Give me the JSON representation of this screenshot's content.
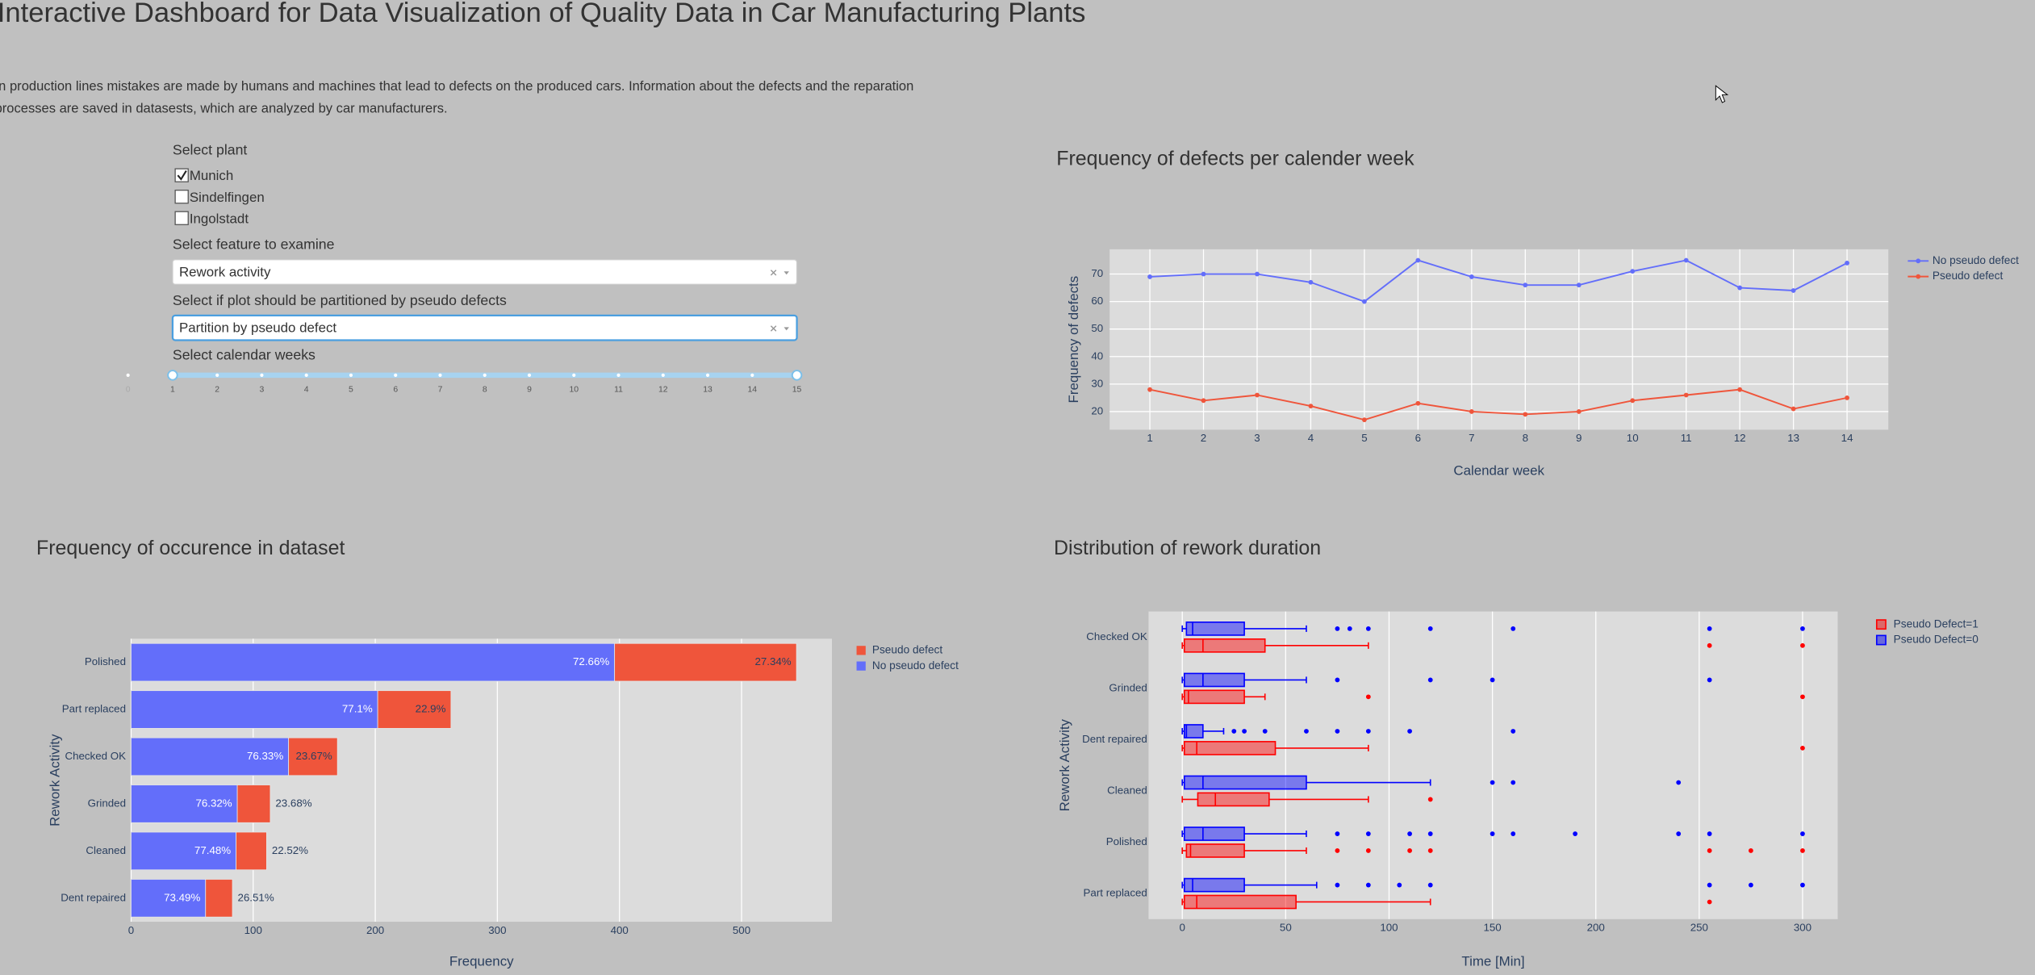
{
  "header": {
    "title": "Interactive Dashboard for Data Visualization of Quality Data in Car Manufacturing Plants",
    "description": [
      "In production lines mistakes are made by humans and machines that lead to defects on the produced cars. Information about the defects and the reparation",
      "processes are saved in datasests, which are analyzed by car manufacturers."
    ]
  },
  "controls": {
    "plant": {
      "label": "Select plant",
      "options": [
        {
          "label": "Munich",
          "checked": true
        },
        {
          "label": "Sindelfingen",
          "checked": false
        },
        {
          "label": "Ingolstadt",
          "checked": false
        }
      ]
    },
    "feature": {
      "label": "Select feature to examine",
      "value": "Rework activity"
    },
    "partition": {
      "label": "Select if plot should be partitioned by pseudo defects",
      "value": "Partition by pseudo defect"
    },
    "weeks": {
      "label": "Select calendar weeks",
      "marks": [
        0,
        1,
        2,
        3,
        4,
        5,
        6,
        7,
        8,
        9,
        10,
        11,
        12,
        13,
        14,
        15
      ],
      "value": [
        1,
        15
      ]
    }
  },
  "chart_data": [
    {
      "type": "line",
      "title": "Frequency of defects per calender week",
      "x_label": "Calendar week",
      "y_label": "Frequency of defects",
      "x": [
        1,
        2,
        3,
        4,
        5,
        6,
        7,
        8,
        9,
        10,
        11,
        12,
        13,
        14
      ],
      "series": [
        {
          "name": "No pseudo defect",
          "color": "#636efa",
          "values": [
            69,
            70,
            70,
            67,
            60,
            75,
            69,
            66,
            66,
            71,
            75,
            65,
            64,
            74
          ]
        },
        {
          "name": "Pseudo defect",
          "color": "#ef553b",
          "values": [
            28,
            24,
            26,
            22,
            17,
            23,
            20,
            19,
            20,
            24,
            26,
            28,
            21,
            25
          ]
        }
      ],
      "xlim": [
        0.25,
        14.77
      ],
      "xticks": [
        1,
        2,
        3,
        4,
        5,
        6,
        7,
        8,
        9,
        10,
        11,
        12,
        13,
        14
      ],
      "ylim": [
        13.4,
        79
      ],
      "yticks": [
        20,
        30,
        40,
        50,
        60,
        70
      ],
      "grid": true,
      "legend": "outside-right"
    },
    {
      "type": "bar",
      "orientation": "h",
      "barmode": "stack",
      "title": "Frequency of occurence in dataset",
      "x_label": "Frequency",
      "y_label": "Rework Activity",
      "categories": [
        "Polished",
        "Part replaced",
        "Checked OK",
        "Grinded",
        "Cleaned",
        "Dent repaired"
      ],
      "series": [
        {
          "name": "No pseudo defect",
          "color": "#636efa",
          "values": [
            396,
            202,
            129,
            87,
            86,
            61
          ],
          "text": [
            "72.66%",
            "77.1%",
            "76.33%",
            "76.32%",
            "77.48%",
            "73.49%"
          ]
        },
        {
          "name": "Pseudo defect",
          "color": "#ef553b",
          "values": [
            149,
            60,
            40,
            27,
            25,
            22
          ],
          "text": [
            "27.34%",
            "22.9%",
            "23.67%",
            "23.68%",
            "22.52%",
            "26.51%"
          ]
        }
      ],
      "xlim": [
        0,
        574
      ],
      "xticks": [
        0,
        100,
        200,
        300,
        400,
        500
      ],
      "grid": true,
      "legend": "outside-right"
    },
    {
      "type": "box",
      "orientation": "h",
      "title": "Distribution of rework duration",
      "x_label": "Time [Min]",
      "y_label": "Rework Activity",
      "categories": [
        "Checked OK",
        "Grinded",
        "Dent repaired",
        "Cleaned",
        "Polished",
        "Part replaced"
      ],
      "series": [
        {
          "name": "Pseudo Defect=1",
          "color": "#ff0000",
          "boxes": [
            {
              "min": 0,
              "q1": 1,
              "median": 10,
              "q3": 40,
              "max": 90,
              "outliers": [
                255,
                300
              ]
            },
            {
              "min": 0,
              "q1": 1,
              "median": 3,
              "q3": 30,
              "max": 40,
              "outliers": [
                90,
                300
              ]
            },
            {
              "min": 0,
              "q1": 1,
              "median": 7,
              "q3": 45,
              "max": 90,
              "outliers": [
                300
              ]
            },
            {
              "min": 0,
              "q1": 7.5,
              "median": 16,
              "q3": 42,
              "max": 90,
              "outliers": [
                120
              ]
            },
            {
              "min": 0,
              "q1": 2,
              "median": 4,
              "q3": 30,
              "max": 60,
              "outliers": [
                75,
                90,
                110,
                120,
                255,
                275,
                300
              ]
            },
            {
              "min": 0,
              "q1": 1,
              "median": 7,
              "q3": 55,
              "max": 120,
              "outliers": [
                255
              ]
            }
          ]
        },
        {
          "name": "Pseudo Defect=0",
          "color": "#0000ff",
          "boxes": [
            {
              "min": 0,
              "q1": 2,
              "median": 5,
              "q3": 30,
              "max": 60,
              "outliers": [
                75,
                81,
                90,
                120,
                160,
                255,
                300
              ]
            },
            {
              "min": 0,
              "q1": 1,
              "median": 10,
              "q3": 30,
              "max": 60,
              "outliers": [
                75,
                120,
                150,
                255
              ]
            },
            {
              "min": 0,
              "q1": 1,
              "median": 2,
              "q3": 10,
              "max": 20,
              "outliers": [
                25,
                30,
                40,
                60,
                75,
                90,
                110,
                160
              ]
            },
            {
              "min": 0,
              "q1": 1,
              "median": 10,
              "q3": 60,
              "max": 120,
              "outliers": [
                150,
                160,
                240
              ]
            },
            {
              "min": 0,
              "q1": 1,
              "median": 10,
              "q3": 30,
              "max": 60,
              "outliers": [
                75,
                90,
                110,
                120,
                150,
                160,
                190,
                240,
                255,
                300
              ]
            },
            {
              "min": 0,
              "q1": 1,
              "median": 5,
              "q3": 30,
              "max": 65,
              "outliers": [
                75,
                90,
                105,
                120,
                255,
                275,
                300
              ]
            }
          ]
        }
      ],
      "xlim": [
        -16.3,
        317
      ],
      "xticks": [
        0,
        50,
        100,
        150,
        200,
        250,
        300
      ],
      "grid": true,
      "legend": "outside-right"
    }
  ]
}
